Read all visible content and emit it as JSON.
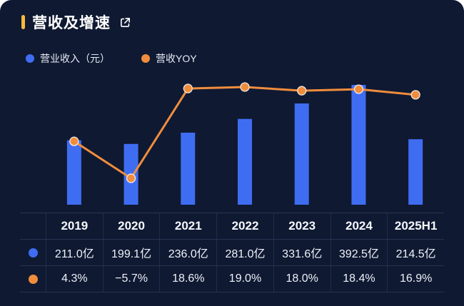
{
  "header": {
    "title": "营收及增速",
    "accent_color": "#f7b93e"
  },
  "legend": [
    {
      "label": "营业收入（元）",
      "color": "#3f6df2"
    },
    {
      "label": "营收YOY",
      "color": "#f08d3d"
    }
  ],
  "chart_data": {
    "type": "combo",
    "categories": [
      "2019",
      "2020",
      "2021",
      "2022",
      "2023",
      "2024",
      "2025H1"
    ],
    "series": [
      {
        "name": "营业收入（元）",
        "type": "bar",
        "unit": "亿",
        "color": "#3f6df2",
        "values": [
          211.0,
          199.1,
          236.0,
          281.0,
          331.6,
          392.5,
          214.5
        ]
      },
      {
        "name": "营收YOY",
        "type": "line",
        "unit": "%",
        "color": "#f08d3d",
        "values": [
          4.3,
          -5.7,
          18.6,
          19.0,
          18.0,
          18.4,
          16.9
        ]
      }
    ],
    "bar_axis_range": [
      0,
      400
    ],
    "line_axis_range": [
      -10,
      25
    ],
    "grid": false,
    "legend_position": "top-left"
  },
  "table": {
    "columns": [
      "2019",
      "2020",
      "2021",
      "2022",
      "2023",
      "2024",
      "2025H1"
    ],
    "rows": [
      {
        "icon_color": "#3f6df2",
        "cells": [
          "211.0亿",
          "199.1亿",
          "236.0亿",
          "281.0亿",
          "331.6亿",
          "392.5亿",
          "214.5亿"
        ]
      },
      {
        "icon_color": "#f08d3d",
        "cells": [
          "4.3%",
          "−5.7%",
          "18.6%",
          "19.0%",
          "18.0%",
          "18.4%",
          "16.9%"
        ]
      }
    ]
  }
}
